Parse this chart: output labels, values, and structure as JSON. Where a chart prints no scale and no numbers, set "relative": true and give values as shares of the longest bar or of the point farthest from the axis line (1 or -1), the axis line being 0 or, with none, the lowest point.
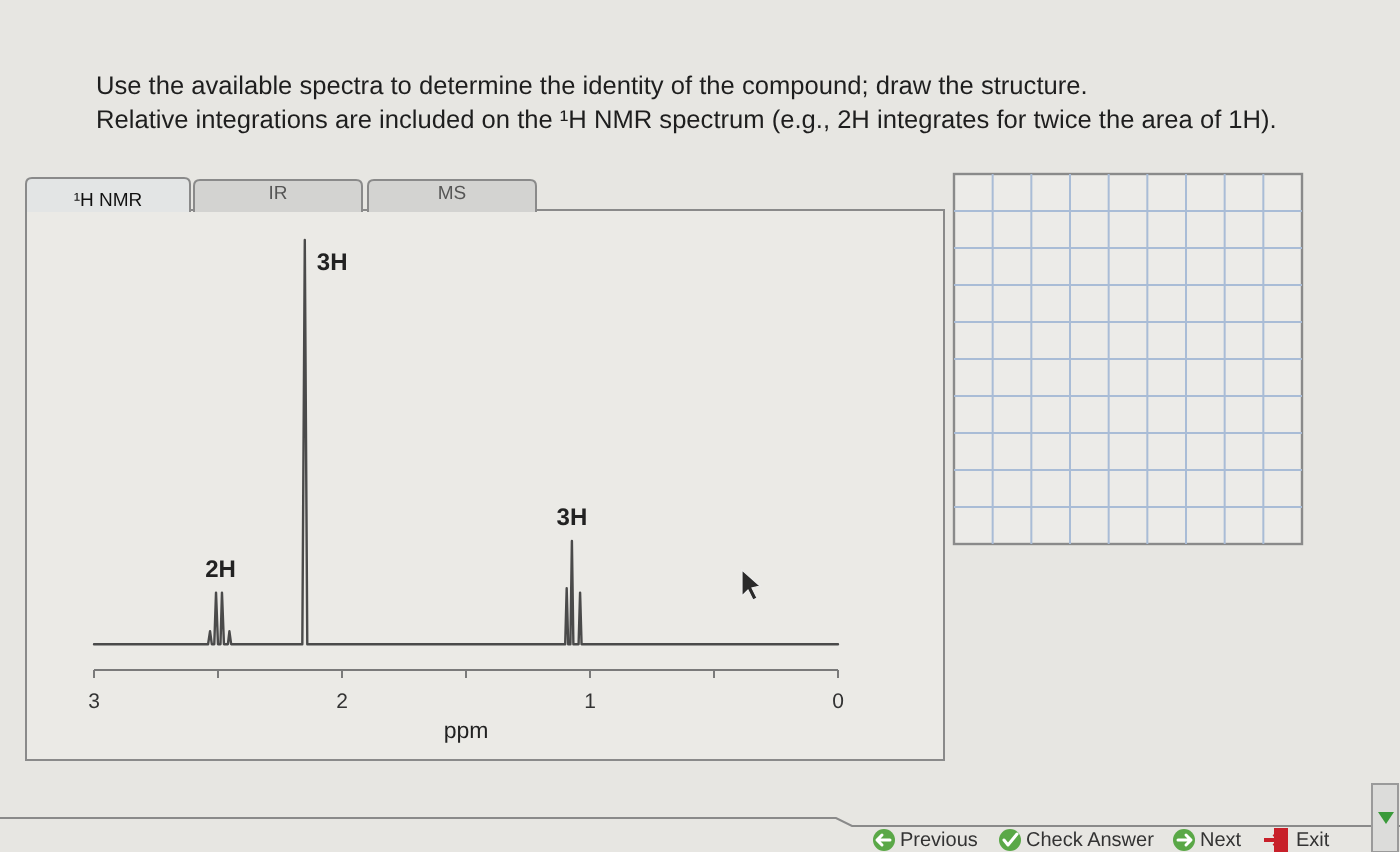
{
  "chart_data": {
    "type": "line",
    "title": "Use the available spectra to determine the identity of the compound; draw the structure.",
    "subtitle": "Relative integrations are included on the ¹H NMR spectrum (e.g., 2H integrates for twice the area of 1H).",
    "xlabel": "ppm",
    "relative": true,
    "color": "#4a4a4a",
    "x": [
      3.0,
      2.54,
      2.532,
      2.525,
      2.515,
      2.508,
      2.5,
      2.49,
      2.484,
      2.476,
      2.46,
      2.454,
      2.447,
      2.16,
      2.15,
      2.14,
      1.1,
      1.094,
      1.088,
      1.079,
      1.073,
      1.067,
      1.046,
      1.04,
      1.034,
      0.0
    ],
    "values": [
      0.06,
      0.06,
      0.09,
      0.06,
      0.06,
      0.18,
      0.06,
      0.06,
      0.18,
      0.06,
      0.06,
      0.09,
      0.06,
      0.06,
      1,
      0.06,
      0.06,
      0.19,
      0.06,
      0.06,
      0.3,
      0.06,
      0.06,
      0.18,
      0.06,
      0.06
    ],
    "xlim": [
      3,
      0
    ],
    "xticks": [
      3,
      {
        "value": 2.5,
        "label": null
      },
      2,
      {
        "value": 1.5,
        "label": null
      },
      1,
      {
        "value": 0.5,
        "label": null
      },
      0
    ],
    "annotations": [
      {
        "text": "3H",
        "x": 2.15,
        "y": 1
      },
      {
        "text": "2H",
        "x": 2.49,
        "y": 0.18
      },
      {
        "text": "3H",
        "x": 1.073,
        "y": 0.3
      },
      "¹H NMR",
      "IR",
      "MS",
      "Previous",
      "Check Answer",
      "Next",
      "Exit"
    ]
  }
}
